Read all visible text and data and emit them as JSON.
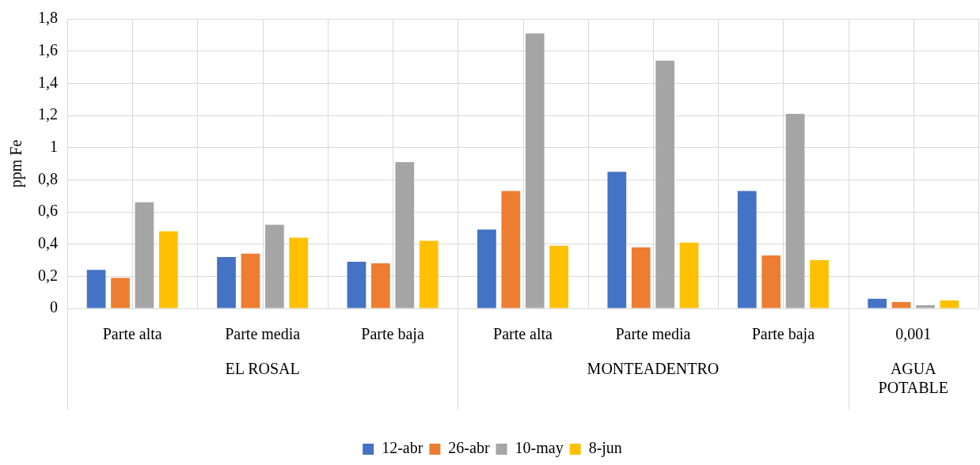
{
  "chart_data": {
    "type": "bar",
    "ylabel": "ppm Fe",
    "categories": [
      "Parte alta",
      "Parte media",
      "Parte baja",
      "Parte alta",
      "Parte media",
      "Parte baja",
      "0,001"
    ],
    "series": [
      {
        "name": "12-abr",
        "color": "#4472c4",
        "values": [
          0.24,
          0.32,
          0.29,
          0.49,
          0.85,
          0.73,
          0.06
        ]
      },
      {
        "name": "26-abr",
        "color": "#ed7d31",
        "values": [
          0.19,
          0.34,
          0.28,
          0.73,
          0.38,
          0.33,
          0.04
        ]
      },
      {
        "name": "10-may",
        "color": "#a5a5a5",
        "values": [
          0.66,
          0.52,
          0.91,
          1.71,
          1.54,
          1.21,
          0.02
        ]
      },
      {
        "name": "8-jun",
        "color": "#ffc000",
        "values": [
          0.48,
          0.44,
          0.42,
          0.39,
          0.41,
          0.3,
          0.05
        ]
      }
    ],
    "ylim": [
      0,
      1.8
    ],
    "yticks": [
      0,
      {
        "value": 0.2,
        "label": "0,2"
      },
      {
        "value": 0.4,
        "label": "0,4"
      },
      {
        "value": 0.6,
        "label": "0,6"
      },
      {
        "value": 0.8,
        "label": "0,8"
      },
      1,
      {
        "value": 1.2,
        "label": "1,2"
      },
      {
        "value": 1.4,
        "label": "1,4"
      },
      {
        "value": 1.6,
        "label": "1,6"
      },
      {
        "value": 1.8,
        "label": "1,8"
      }
    ],
    "annotations": [
      "EL ROSAL",
      "MONTEADENTRO",
      "AGUA POTABLE"
    ],
    "grid": true,
    "legend": "bottom"
  }
}
